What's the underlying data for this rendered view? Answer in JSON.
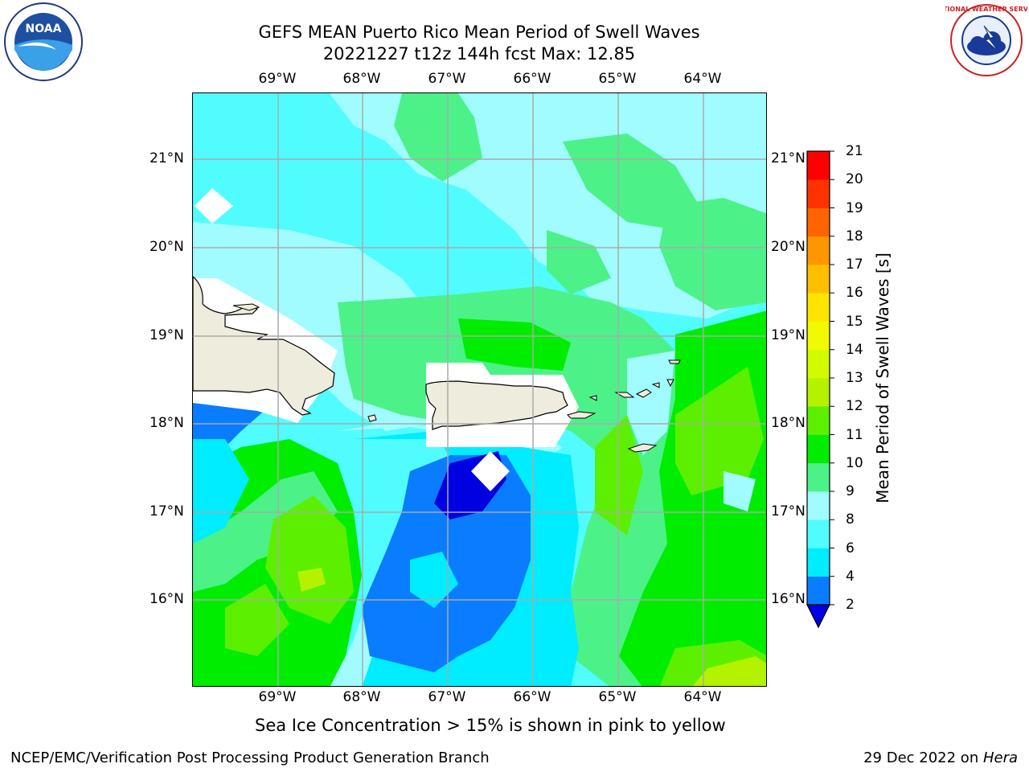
{
  "title": {
    "line1": "GEFS MEAN Puerto Rico Mean Period of Swell Waves",
    "line2": "20221227 t12z 144h fcst   Max: 12.85"
  },
  "logos": {
    "left": {
      "name": "noaa-logo",
      "text": "NOAA"
    },
    "right": {
      "name": "nws-logo",
      "text": "NATIONAL WEATHER SERVICE"
    }
  },
  "map": {
    "lon_labels": [
      "69°W",
      "68°W",
      "67°W",
      "66°W",
      "65°W",
      "64°W"
    ],
    "lat_labels": [
      "21°N",
      "20°N",
      "19°N",
      "18°N",
      "17°N",
      "16°N"
    ],
    "extent": {
      "lon": [
        -69.99,
        -63.25
      ],
      "lat": [
        15.02,
        21.76
      ]
    },
    "land_color": "#eeecdc",
    "grid_color": "#aaaaaa"
  },
  "colorbar": {
    "title": "Mean Period of Swell Waves [s]",
    "ticks": [
      "2",
      "4",
      "6",
      "8",
      "9",
      "10",
      "11",
      "12",
      "13",
      "14",
      "15",
      "16",
      "17",
      "18",
      "19",
      "20",
      "21"
    ],
    "colors": [
      "#0000e0",
      "#0a7cff",
      "#00ecff",
      "#51fcff",
      "#a0fcff",
      "#4cf288",
      "#00ed00",
      "#5cf000",
      "#b4f200",
      "#d2fa00",
      "#f0fa00",
      "#ffe400",
      "#ffbe00",
      "#ff9600",
      "#ff6400",
      "#ff3200",
      "#ff0000"
    ],
    "extend": "min"
  },
  "note": "Sea Ice Concentration > 15% is shown in pink to yellow",
  "footer": {
    "left": "NCEP/EMC/Verification Post Processing Product Generation Branch",
    "right_date": "29 Dec 2022 on ",
    "right_machine": "Hera"
  }
}
